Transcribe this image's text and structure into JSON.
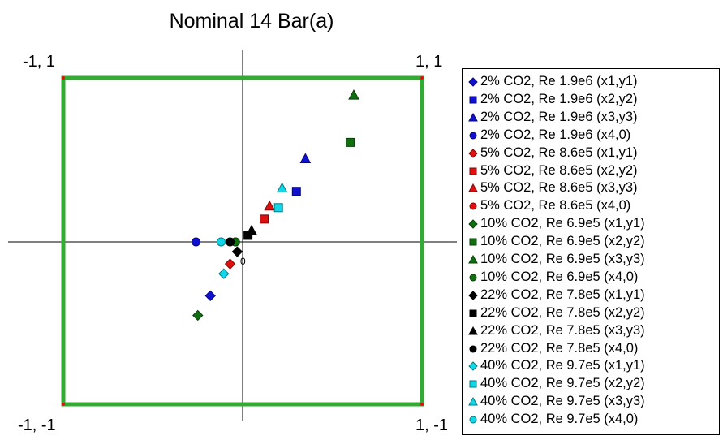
{
  "chart_data": {
    "type": "scatter",
    "title": "Nominal 14 Bar(a)",
    "xlim": [
      -1,
      1
    ],
    "ylim": [
      -1,
      1
    ],
    "corner_labels": {
      "top_left": "-1, 1",
      "top_right": "1, 1",
      "bottom_left": "-1, -1",
      "bottom_right": "1, -1"
    },
    "zero_label": "0",
    "square_color": "#33aa33",
    "axis_color": "#000000",
    "legend_position": "right",
    "series": [
      {
        "name": "2% CO2, Re 1.9e6 (x1,y1)",
        "color": "#1010d0",
        "marker": "diamond",
        "points": [
          [
            -0.18,
            -0.33
          ]
        ]
      },
      {
        "name": "2% CO2, Re 1.9e6 (x2,y2)",
        "color": "#1010d0",
        "marker": "square",
        "points": [
          [
            0.3,
            0.31
          ]
        ]
      },
      {
        "name": "2% CO2, Re 1.9e6 (x3,y3)",
        "color": "#1010d0",
        "marker": "triangle",
        "points": [
          [
            0.35,
            0.51
          ]
        ]
      },
      {
        "name": "2% CO2, Re 1.9e6 (x4,0)",
        "color": "#1010d0",
        "marker": "circle",
        "points": [
          [
            -0.26,
            0.0
          ]
        ]
      },
      {
        "name": "5% CO2, Re 8.6e5 (x1,y1)",
        "color": "#e01010",
        "marker": "diamond",
        "points": [
          [
            -0.07,
            -0.135
          ]
        ]
      },
      {
        "name": "5% CO2, Re 8.6e5 (x2,y2)",
        "color": "#e01010",
        "marker": "square",
        "points": [
          [
            0.12,
            0.14
          ]
        ]
      },
      {
        "name": "5% CO2, Re 8.6e5 (x3,y3)",
        "color": "#e01010",
        "marker": "triangle",
        "points": [
          [
            0.15,
            0.22
          ]
        ]
      },
      {
        "name": "5% CO2, Re 8.6e5 (x4,0)",
        "color": "#e01010",
        "marker": "circle",
        "points": [
          [
            -0.04,
            0.0
          ]
        ]
      },
      {
        "name": "10% CO2, Re 6.9e5 (x1,y1)",
        "color": "#107010",
        "marker": "diamond",
        "points": [
          [
            -0.25,
            -0.45
          ]
        ]
      },
      {
        "name": "10% CO2, Re 6.9e5 (x2,y2)",
        "color": "#107010",
        "marker": "square",
        "points": [
          [
            0.6,
            0.61
          ]
        ]
      },
      {
        "name": "10% CO2, Re 6.9e5 (x3,y3)",
        "color": "#107010",
        "marker": "triangle",
        "points": [
          [
            0.62,
            0.9
          ]
        ]
      },
      {
        "name": "10% CO2, Re 6.9e5 (x4,0)",
        "color": "#107010",
        "marker": "circle",
        "points": [
          [
            -0.04,
            0.0
          ]
        ]
      },
      {
        "name": "22% CO2, Re 7.8e5 (x1,y1)",
        "color": "#000000",
        "marker": "diamond",
        "points": [
          [
            -0.03,
            -0.06
          ]
        ]
      },
      {
        "name": "22% CO2, Re 7.8e5 (x2,y2)",
        "color": "#000000",
        "marker": "square",
        "points": [
          [
            0.03,
            0.04
          ]
        ]
      },
      {
        "name": "22% CO2, Re 7.8e5 (x3,y3)",
        "color": "#000000",
        "marker": "triangle",
        "points": [
          [
            0.05,
            0.07
          ]
        ]
      },
      {
        "name": "22% CO2, Re 7.8e5 (x4,0)",
        "color": "#000000",
        "marker": "circle",
        "points": [
          [
            -0.07,
            0.0
          ]
        ]
      },
      {
        "name": "40% CO2, Re 9.7e5 (x1,y1)",
        "color": "#10d8e8",
        "marker": "diamond",
        "points": [
          [
            -0.105,
            -0.195
          ]
        ]
      },
      {
        "name": "40% CO2, Re 9.7e5 (x2,y2)",
        "color": "#10d8e8",
        "marker": "square",
        "points": [
          [
            0.2,
            0.21
          ]
        ]
      },
      {
        "name": "40% CO2, Re 9.7e5 (x3,y3)",
        "color": "#10d8e8",
        "marker": "triangle",
        "points": [
          [
            0.22,
            0.33
          ]
        ]
      },
      {
        "name": "40% CO2, Re 9.7e5 (x4,0)",
        "color": "#10d8e8",
        "marker": "circle",
        "points": [
          [
            -0.12,
            0.0
          ]
        ]
      }
    ]
  }
}
